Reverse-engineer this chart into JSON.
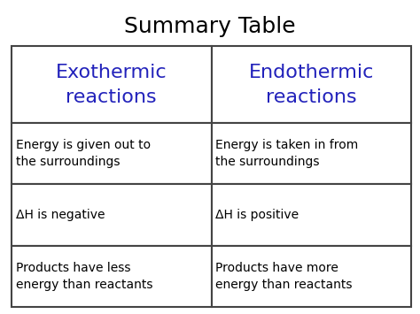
{
  "title": "Summary Table",
  "title_fontsize": 18,
  "title_color": "#000000",
  "title_font": "Comic Sans MS",
  "header_row": [
    "Exothermic\nreactions",
    "Endothermic\nreactions"
  ],
  "header_color": "#2222bb",
  "header_fontsize": 16,
  "header_font": "Comic Sans MS",
  "body_rows": [
    [
      "Energy is given out to\nthe surroundings",
      "Energy is taken in from\nthe surroundings"
    ],
    [
      "ΔH is negative",
      "ΔH is positive"
    ],
    [
      "Products have less\nenergy than reactants",
      "Products have more\nenergy than reactants"
    ]
  ],
  "body_color": "#000000",
  "body_fontsize": 10,
  "body_font": "Comic Sans MS",
  "table_edge_color": "#444444",
  "table_linewidth": 1.5,
  "bg_color": "#ffffff",
  "fig_width": 4.74,
  "fig_height": 3.55,
  "fig_dpi": 100
}
